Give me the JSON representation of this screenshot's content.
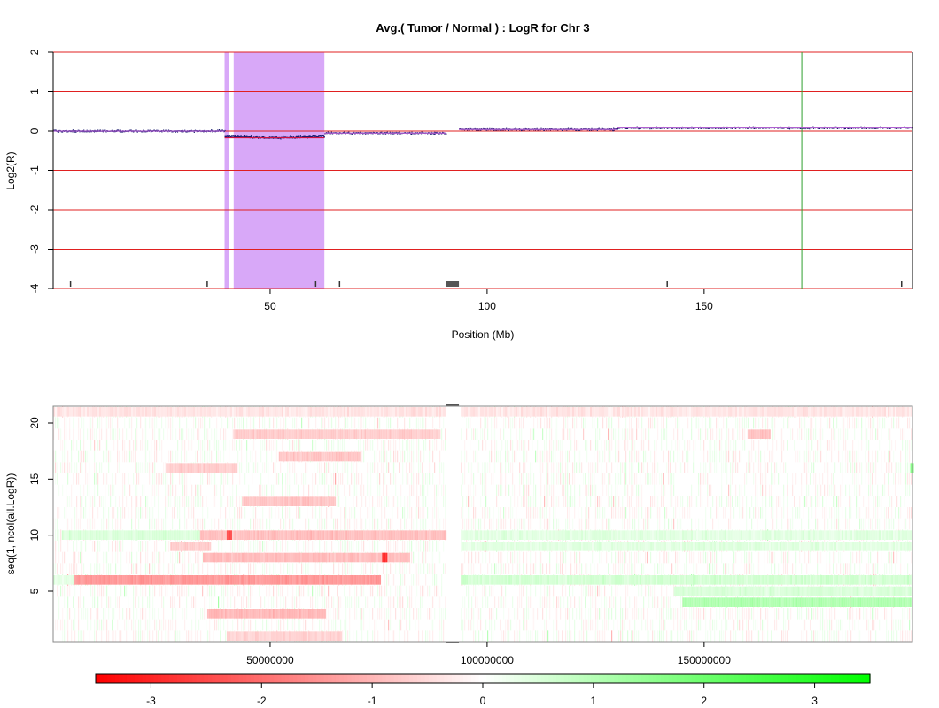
{
  "chart_data": [
    {
      "type": "line",
      "title": "Avg.( Tumor / Normal ) : LogR for Chr 3",
      "xlabel": "Position (Mb)",
      "ylabel": "Log2(R)",
      "xlim": [
        0,
        198
      ],
      "ylim": [
        -4,
        2
      ],
      "x_ticks": [
        50,
        100,
        150
      ],
      "y_ticks": [
        -4,
        -3,
        -2,
        -1,
        0,
        1,
        2
      ],
      "grid": "horizontal red reference lines at integer Log2(R) values",
      "segments": [
        {
          "x0": 0,
          "x1": 39.5,
          "y": 0.0
        },
        {
          "x0": 39.5,
          "x1": 62.5,
          "y": -0.17
        },
        {
          "x0": 62.5,
          "x1": 90.5,
          "y": -0.05
        },
        {
          "x0": 93.5,
          "x1": 130,
          "y": 0.04
        },
        {
          "x0": 130,
          "x1": 198,
          "y": 0.08
        }
      ],
      "highlight_region": {
        "from": 39.5,
        "to": 62.5,
        "gap_from": 40.6,
        "gap_to": 41.6,
        "color": "#d8a8f8"
      },
      "marker_line": {
        "x": 172.5,
        "color": "#2ea02e"
      },
      "gap_region": {
        "from": 90.5,
        "to": 93.5
      },
      "bottom_ticks": [
        4,
        35.5,
        60.5,
        66,
        141.5,
        195.5
      ]
    },
    {
      "type": "heatmap",
      "xlabel": "",
      "ylabel": "seq(1, ncol(all.LogR))",
      "xlim": [
        0,
        198000000
      ],
      "ylim": [
        0.5,
        21.5
      ],
      "x_ticks": [
        50000000,
        100000000,
        150000000
      ],
      "x_tick_labels": [
        "50000000",
        "100000000",
        "150000000"
      ],
      "y_ticks": [
        5,
        10,
        15,
        20
      ],
      "rows": 21,
      "gap_region": {
        "from": 90500000,
        "to": 93500000
      },
      "color_scale": {
        "min": -3.5,
        "max": 3.5,
        "low": "#ff0000",
        "mid": "#ffffff",
        "high": "#00ff00"
      },
      "colorbar_ticks": [
        -3,
        -2,
        -1,
        0,
        1,
        2,
        3
      ],
      "features": [
        {
          "row": 1,
          "from": 40000000,
          "to": 66500000,
          "value": -0.6
        },
        {
          "row": 3,
          "from": 35500000,
          "to": 62500000,
          "value": -1.0
        },
        {
          "row": 4,
          "from": 145000000,
          "to": 198000000,
          "value": 1.1
        },
        {
          "row": 5,
          "from": 143000000,
          "to": 198000000,
          "value": 0.5
        },
        {
          "row": 6,
          "from": 4500000,
          "to": 75500000,
          "value": -1.4
        },
        {
          "row": 6,
          "from": 93500000,
          "to": 198000000,
          "value": 0.6
        },
        {
          "row": 6,
          "from": 0,
          "to": 4500000,
          "value": 0.4
        },
        {
          "row": 8,
          "from": 34500000,
          "to": 82000000,
          "value": -0.9
        },
        {
          "row": 8,
          "from": 75800000,
          "to": 76800000,
          "value": -3.0
        },
        {
          "row": 9,
          "from": 27000000,
          "to": 36000000,
          "value": -0.7
        },
        {
          "row": 9,
          "from": 93500000,
          "to": 198000000,
          "value": 0.4
        },
        {
          "row": 10,
          "from": 33500000,
          "to": 90500000,
          "value": -0.9
        },
        {
          "row": 10,
          "from": 40000000,
          "to": 40900000,
          "value": -2.4
        },
        {
          "row": 10,
          "from": 2000000,
          "to": 33500000,
          "value": 0.5
        },
        {
          "row": 10,
          "from": 93500000,
          "to": 198000000,
          "value": 0.4
        },
        {
          "row": 13,
          "from": 43500000,
          "to": 65000000,
          "value": -0.8
        },
        {
          "row": 14,
          "from": 91500000,
          "to": 92300000,
          "value": 0.9
        },
        {
          "row": 16,
          "from": 26000000,
          "to": 42000000,
          "value": -0.7
        },
        {
          "row": 16,
          "from": 197500000,
          "to": 198000000,
          "value": 1.6
        },
        {
          "row": 17,
          "from": 52000000,
          "to": 70500000,
          "value": -0.8
        },
        {
          "row": 19,
          "from": 41500000,
          "to": 89000000,
          "value": -0.7
        },
        {
          "row": 19,
          "from": 160000000,
          "to": 165000000,
          "value": -0.9
        },
        {
          "row": 21,
          "from": 0,
          "to": 198000000,
          "value": -0.35
        }
      ]
    }
  ]
}
